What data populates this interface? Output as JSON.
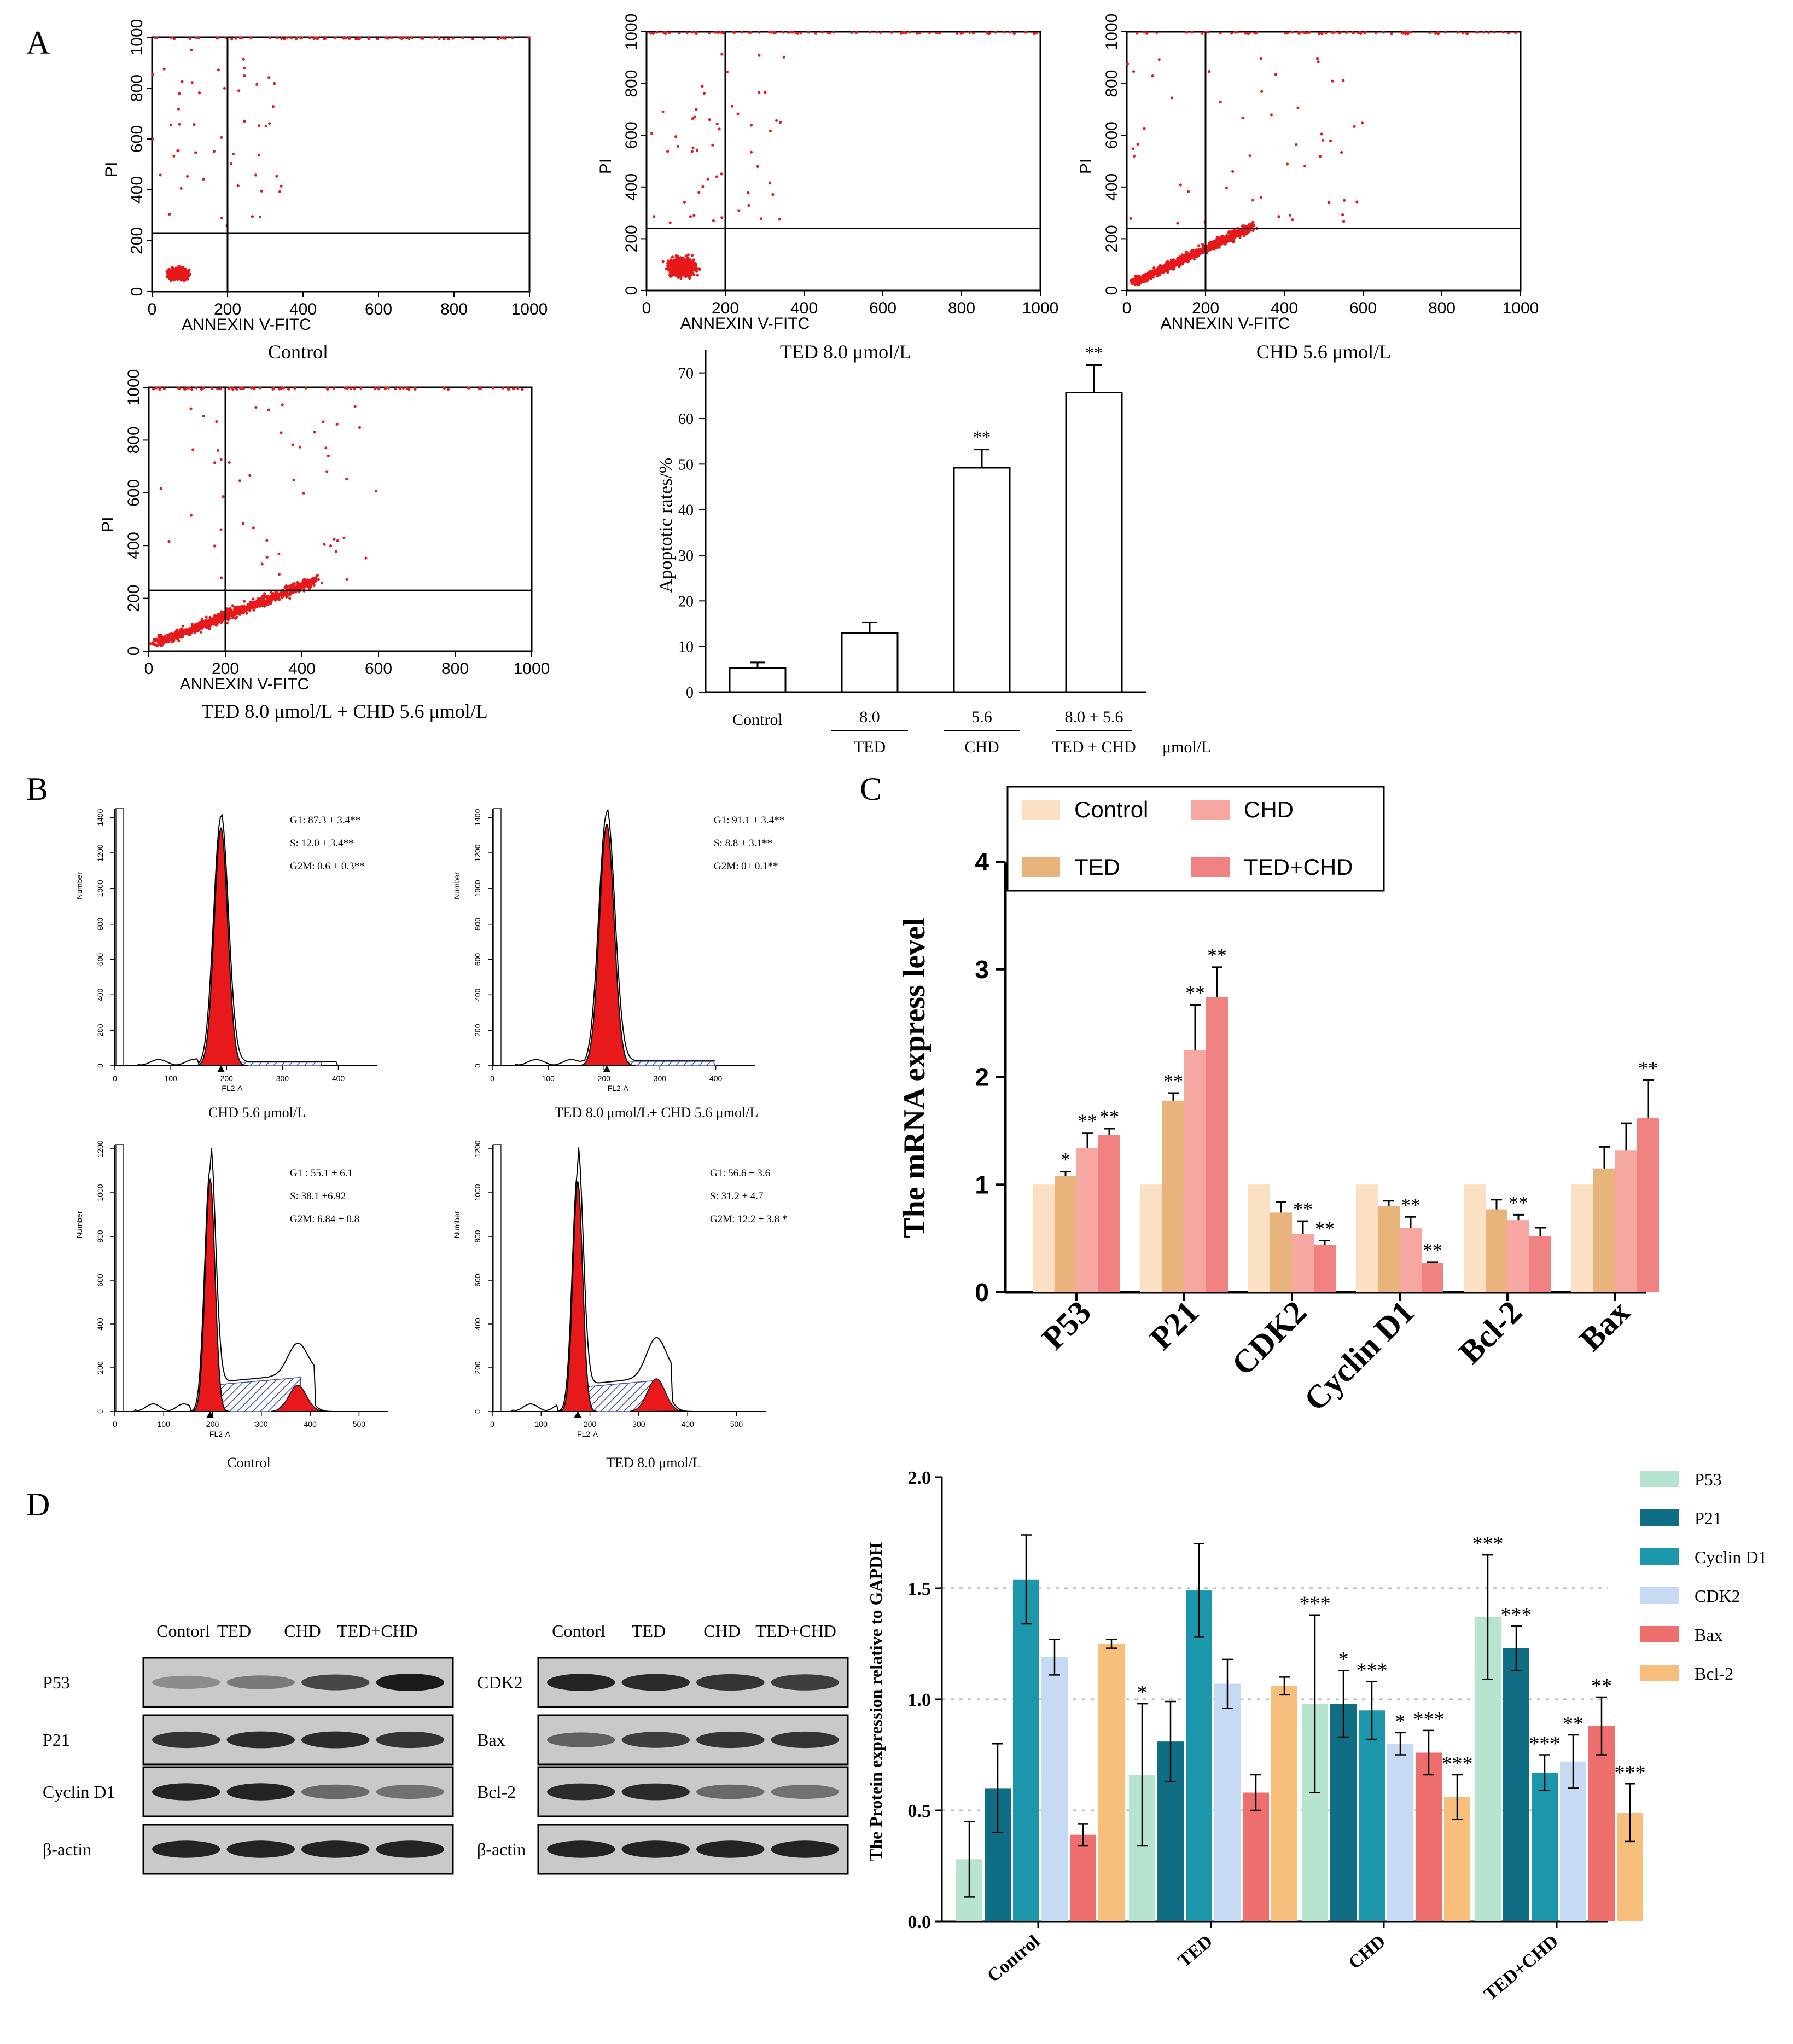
{
  "panel_labels": {
    "a": "A",
    "b": "B",
    "c": "C",
    "d": "D"
  },
  "colors": {
    "dot": "#e8191a",
    "peak": "#e8191a",
    "hatch": "#3d4fb0"
  },
  "flow": {
    "xlabel": "ANNEXIN V-FITC",
    "ylabel": "PI",
    "ticks": [
      "0",
      "200",
      "400",
      "600",
      "800",
      "1000"
    ],
    "plots": [
      {
        "caption": "Control"
      },
      {
        "caption": "TED 8.0  μmol/L"
      },
      {
        "caption": "CHD 5.6  μmol/L"
      },
      {
        "caption": "TED 8.0  μmol/L   + CHD 5.6  μmol/L"
      }
    ]
  },
  "apoptosis_chart": {
    "ylabel": "Apoptotic rates/%",
    "yticks": [
      "0",
      "10",
      "20",
      "30",
      "40",
      "50",
      "60",
      "70"
    ],
    "unit": "μmol/L",
    "groups": [
      {
        "top": "Control",
        "bottom": "",
        "sig": ""
      },
      {
        "top": "8.0",
        "bottom": "TED",
        "sig": ""
      },
      {
        "top": "5.6",
        "bottom": "CHD",
        "sig": "**"
      },
      {
        "top": "8.0 + 5.6",
        "bottom": "TED + CHD",
        "sig": "**"
      }
    ]
  },
  "cell_cycle": {
    "xlabel": "FL2-A",
    "ylabel": "Number",
    "plots": [
      {
        "caption": "CHD 5.6  μmol/L",
        "stats": [
          "G1: 87.3 ± 3.4**",
          "S: 12.0 ±  3.4**",
          "G2M: 0.6 ± 0.3**"
        ],
        "yticks": [
          "0",
          "200",
          "400",
          "600",
          "800",
          "1000",
          "1200",
          "1400"
        ],
        "xticks": [
          "0",
          "100",
          "200",
          "300",
          "400"
        ]
      },
      {
        "caption": "TED 8.0  μmol/L+  CHD 5.6  μmol/L",
        "stats": [
          "G1: 91.1 ± 3.4**",
          "S: 8.8 ± 3.1**",
          "G2M: 0± 0.1**"
        ],
        "yticks": [
          "0",
          "200",
          "400",
          "600",
          "800",
          "1000",
          "1200",
          "1400"
        ],
        "xticks": [
          "0",
          "100",
          "200",
          "300",
          "400"
        ]
      },
      {
        "caption": "Control",
        "stats": [
          "G1 : 55.1 ± 6.1",
          "S: 38.1 ±6.92",
          "G2M: 6.84 ± 0.8"
        ],
        "yticks": [
          "0",
          "200",
          "400",
          "600",
          "800",
          "1000",
          "1200"
        ],
        "xticks": [
          "0",
          "100",
          "200",
          "300",
          "400",
          "500"
        ]
      },
      {
        "caption": "TED 8.0  μmol/L",
        "stats": [
          "G1: 56.6 ± 3.6",
          "S: 31.2 ± 4.7",
          "G2M: 12.2 ± 3.8 *"
        ],
        "yticks": [
          "0",
          "200",
          "400",
          "600",
          "800",
          "1000",
          "1200"
        ],
        "xticks": [
          "0",
          "100",
          "200",
          "300",
          "400",
          "500"
        ]
      }
    ]
  },
  "western": {
    "left": {
      "lanes": [
        "Contorl",
        "TED",
        "CHD",
        "TED+CHD"
      ],
      "rows": [
        "P53",
        "P21",
        "Cyclin D1",
        "β-actin"
      ]
    },
    "right": {
      "lanes": [
        "Contorl",
        "TED",
        "CHD",
        "TED+CHD"
      ],
      "rows": [
        "CDK2",
        "Bax",
        "Bcl-2",
        "β-actin"
      ]
    }
  },
  "chart_data": [
    {
      "type": "bar",
      "title": "",
      "xlabel": "",
      "ylabel": "Apoptotic rates/%",
      "categories": [
        "Control",
        "8.0 TED",
        "5.6 CHD",
        "8.0 + 5.6 TED + CHD"
      ],
      "values": [
        5.3,
        13.0,
        49.2,
        65.7
      ],
      "errors": [
        1.2,
        2.3,
        4.0,
        6.0
      ],
      "ylim": [
        0,
        75
      ],
      "units_note": "μmol/L"
    },
    {
      "type": "bar",
      "xlabel": "",
      "ylabel": "The mRNA express level",
      "categories": [
        "P53",
        "P21",
        "CDK2",
        "Cyclin D1",
        "Bcl-2",
        "Bax"
      ],
      "ylim": [
        0,
        4
      ],
      "yticks": [
        "0",
        "1",
        "2",
        "3",
        "4"
      ],
      "legend": "top",
      "series": [
        {
          "name": "Control",
          "color": "#fbe0c3",
          "values": [
            1.0,
            1.0,
            1.0,
            1.0,
            1.0,
            1.0
          ],
          "errors": [
            0,
            0,
            0,
            0,
            0,
            0
          ],
          "sig": [
            "",
            "",
            "",
            "",
            "",
            ""
          ]
        },
        {
          "name": "TED",
          "color": "#e9b37c",
          "values": [
            1.08,
            1.78,
            0.74,
            0.8,
            0.77,
            1.15
          ],
          "errors": [
            0.04,
            0.07,
            0.1,
            0.05,
            0.09,
            0.2
          ],
          "sig": [
            "*",
            "**",
            "",
            "",
            "",
            ""
          ]
        },
        {
          "name": "CHD",
          "color": "#f6a7a1",
          "values": [
            1.34,
            2.25,
            0.54,
            0.6,
            0.67,
            1.32
          ],
          "errors": [
            0.14,
            0.42,
            0.12,
            0.1,
            0.05,
            0.25
          ],
          "sig": [
            "**",
            "**",
            "**",
            "**",
            "**",
            ""
          ]
        },
        {
          "name": "TED+CHD",
          "color": "#f08282",
          "values": [
            1.46,
            2.74,
            0.44,
            0.27,
            0.52,
            1.62
          ],
          "errors": [
            0.06,
            0.28,
            0.04,
            0.01,
            0.08,
            0.35
          ],
          "sig": [
            "**",
            "**",
            "**",
            "**",
            "",
            "**"
          ]
        }
      ]
    },
    {
      "type": "bar",
      "xlabel": "",
      "ylabel": "The Protein expression relative to GAPDH",
      "categories": [
        "Control",
        "TED",
        "CHD",
        "TED+CHD"
      ],
      "ylim": [
        0,
        2.0
      ],
      "yticks": [
        "0.0",
        "0.5",
        "1.0",
        "1.5",
        "2.0"
      ],
      "legend": "right",
      "series": [
        {
          "name": "P53",
          "color": "#b7e4cf",
          "values": [
            0.28,
            0.66,
            0.98,
            1.37
          ],
          "errors": [
            0.17,
            0.32,
            0.4,
            0.28
          ],
          "sig": [
            "",
            "*",
            "***",
            "***"
          ]
        },
        {
          "name": "P21",
          "color": "#0f6d84",
          "values": [
            0.6,
            0.81,
            0.98,
            1.23
          ],
          "errors": [
            0.2,
            0.18,
            0.15,
            0.1
          ],
          "sig": [
            "",
            "",
            "*",
            "***"
          ]
        },
        {
          "name": "Cyclin D1",
          "color": "#1b96aa",
          "values": [
            1.54,
            1.49,
            0.95,
            0.67
          ],
          "errors": [
            0.2,
            0.21,
            0.13,
            0.08
          ],
          "sig": [
            "",
            "",
            "***",
            "***"
          ]
        },
        {
          "name": "CDK2",
          "color": "#c6dbf3",
          "values": [
            1.19,
            1.07,
            0.8,
            0.72
          ],
          "errors": [
            0.08,
            0.11,
            0.05,
            0.12
          ],
          "sig": [
            "",
            "",
            "*",
            "**"
          ]
        },
        {
          "name": "Bax",
          "color": "#ef6e6e",
          "values": [
            0.39,
            0.58,
            0.76,
            0.88
          ],
          "errors": [
            0.05,
            0.08,
            0.1,
            0.13
          ],
          "sig": [
            "",
            "",
            "***",
            "**"
          ]
        },
        {
          "name": "Bcl-2",
          "color": "#f8be7c",
          "values": [
            1.25,
            1.06,
            0.56,
            0.49
          ],
          "errors": [
            0.02,
            0.04,
            0.1,
            0.13
          ],
          "sig": [
            "",
            "",
            "***",
            "***"
          ]
        }
      ]
    }
  ]
}
